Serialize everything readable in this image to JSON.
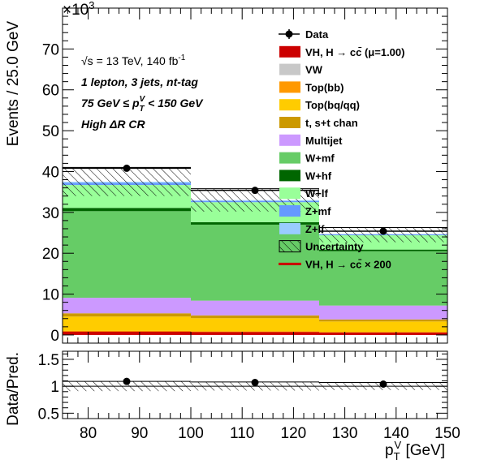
{
  "chart_data": {
    "type": "histogram-stack",
    "x_unit_axis": "p_T^V [GeV]",
    "xlim": [
      75,
      150
    ],
    "bins": [
      [
        75,
        100
      ],
      [
        100,
        125
      ],
      [
        125,
        150
      ]
    ],
    "main": {
      "ylabel": "Events / 25.0 GeV",
      "exponent": "×10^3",
      "ylim": [
        -2,
        80
      ],
      "yticks": [
        0,
        10,
        20,
        30,
        40,
        50,
        60,
        70
      ],
      "stack": [
        {
          "name": "VH, H → cc̄ (μ=1.00)",
          "color": "#cc0000",
          "values": [
            0.6,
            0.5,
            0.4
          ]
        },
        {
          "name": "VW",
          "color": "#c8c8c8",
          "values": [
            0.1,
            0.1,
            0.1
          ]
        },
        {
          "name": "Top(bb)",
          "color": "#ff9900",
          "values": [
            0.3,
            0.3,
            0.2
          ]
        },
        {
          "name": "Top(bq/qq)",
          "color": "#ffcc00",
          "values": [
            3.5,
            3.2,
            2.6
          ]
        },
        {
          "name": "t, s+t chan",
          "color": "#cc9900",
          "values": [
            0.8,
            0.7,
            0.5
          ]
        },
        {
          "name": "Multijet",
          "color": "#cc99ff",
          "values": [
            3.8,
            3.6,
            3.4
          ]
        },
        {
          "name": "W+mf",
          "color": "#66cc66",
          "values": [
            21.2,
            18.6,
            13.3
          ]
        },
        {
          "name": "W+hf",
          "color": "#006600",
          "values": [
            0.8,
            0.6,
            0.4
          ]
        },
        {
          "name": "W+lf",
          "color": "#99ff99",
          "values": [
            5.6,
            4.9,
            3.5
          ]
        },
        {
          "name": "Z+mf",
          "color": "#6699ff",
          "values": [
            0.5,
            0.3,
            0.2
          ]
        },
        {
          "name": "Z+lf",
          "color": "#99ccff",
          "values": [
            0.3,
            0.2,
            0.1
          ]
        }
      ],
      "total": [
        37.5,
        33.0,
        24.5
      ],
      "uncertainty": [
        3.5,
        2.8,
        1.8
      ],
      "data": {
        "x": [
          87.5,
          112.5,
          137.5
        ],
        "y": [
          40.8,
          35.4,
          25.4
        ],
        "err": [
          0.4,
          0.35,
          0.3
        ]
      },
      "signal_x200": {
        "name": "VH, H → cc̄ × 200",
        "color": "#cc0000",
        "values": [
          0.5,
          0.4,
          0.3
        ]
      }
    },
    "ratio": {
      "ylabel": "Data/Pred.",
      "ylim": [
        0.4,
        1.65
      ],
      "yticks": [
        0.5,
        1,
        1.5
      ],
      "ratio_labels": [
        "0.5",
        "1",
        "1.5"
      ],
      "values": [
        1.09,
        1.07,
        1.04
      ],
      "band": [
        0.09,
        0.08,
        0.07
      ]
    },
    "xticks": [
      80,
      90,
      100,
      110,
      120,
      130,
      140,
      150
    ],
    "legend": {
      "entries": [
        "Data",
        "VH, H → cc̄ (μ=1.00)",
        "VW",
        "Top(bb)",
        "Top(bq/qq)",
        "t, s+t chan",
        "Multijet",
        "W+mf",
        "W+hf",
        "W+lf",
        "Z+mf",
        "Z+lf",
        "Uncertainty",
        "VH, H → cc̄ × 200"
      ],
      "placement": "top-right"
    },
    "annotations": {
      "energy": "√s = 13 TeV, 140 fb",
      "energy_sup": "-1",
      "line1": "1 lepton, 3 jets, nt-tag",
      "line2": "75 GeV ≤ p_T^V < 150 GeV",
      "line3": "High ΔR CR"
    }
  },
  "text": {
    "ylabel_main": "Events / 25.0 GeV",
    "ylabel_ratio": "Data/Pred.",
    "exp_base": "×10",
    "exp_sup": "3",
    "xtitle_p": "p",
    "xtitle_sub": "T",
    "xtitle_sup": "V",
    "xtitle_rest": " [GeV]",
    "ann_energy": "√s = 13 TeV, 140 fb",
    "ann_energy_sup": "-1",
    "ann_line1": "1 lepton, 3 jets, nt-tag",
    "ann_line2a": "75 GeV  ≤ p",
    "ann_line2_sub": "T",
    "ann_line2_sup": "V",
    "ann_line2b": " < 150 GeV",
    "ann_line3": "High ΔR CR"
  }
}
